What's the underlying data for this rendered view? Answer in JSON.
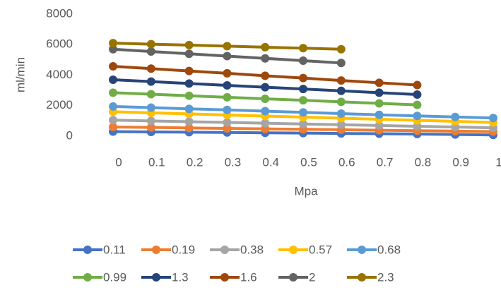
{
  "chart_data": {
    "type": "line",
    "x": [
      0,
      0.1,
      0.2,
      0.3,
      0.4,
      0.5,
      0.6,
      0.7,
      0.8,
      0.9,
      1
    ],
    "xlim": [
      0,
      1
    ],
    "xticks": [
      0,
      0.1,
      0.2,
      0.3,
      0.4,
      0.5,
      0.6,
      0.7,
      0.8,
      0.9,
      1
    ],
    "ylim": [
      0,
      8000
    ],
    "yticks": [
      0,
      2000,
      4000,
      6000,
      8000
    ],
    "x_label": "Mpa",
    "y_label": "ml/min",
    "legend": "bottom",
    "series": [
      {
        "name": "0.11",
        "color": "#4472c4",
        "values": [
          300,
          280,
          260,
          240,
          220,
          200,
          180,
          160,
          140,
          110,
          80
        ]
      },
      {
        "name": "0.19",
        "color": "#ed7d31",
        "values": [
          600,
          570,
          540,
          510,
          480,
          450,
          420,
          390,
          360,
          330,
          300
        ]
      },
      {
        "name": "0.38",
        "color": "#a5a5a5",
        "values": [
          1050,
          1000,
          950,
          900,
          850,
          800,
          750,
          700,
          650,
          600,
          550
        ]
      },
      {
        "name": "0.57",
        "color": "#ffc000",
        "values": [
          1600,
          1530,
          1460,
          1390,
          1320,
          1250,
          1180,
          1110,
          1040,
          970,
          900
        ]
      },
      {
        "name": "0.68",
        "color": "#5b9bd5",
        "values": [
          1950,
          1870,
          1790,
          1720,
          1640,
          1560,
          1480,
          1400,
          1330,
          1260,
          1190
        ]
      },
      {
        "name": "0.99",
        "color": "#70ad47",
        "values": [
          2850,
          2750,
          2650,
          2550,
          2450,
          2350,
          2250,
          2150,
          2050,
          null,
          null
        ]
      },
      {
        "name": "1.3",
        "color": "#264478",
        "values": [
          3700,
          3580,
          3450,
          3330,
          3210,
          3090,
          2970,
          2850,
          2730,
          null,
          null
        ]
      },
      {
        "name": "1.6",
        "color": "#9e480e",
        "values": [
          4580,
          4430,
          4270,
          4120,
          3960,
          3810,
          3650,
          3500,
          3350,
          null,
          null
        ]
      },
      {
        "name": "2",
        "color": "#636363",
        "values": [
          5700,
          5550,
          5400,
          5250,
          5100,
          4950,
          4800,
          null,
          null,
          null,
          null
        ]
      },
      {
        "name": "2.3",
        "color": "#997300",
        "values": [
          6100,
          6030,
          5970,
          5900,
          5830,
          5770,
          5700,
          null,
          null,
          null,
          null
        ]
      }
    ]
  }
}
